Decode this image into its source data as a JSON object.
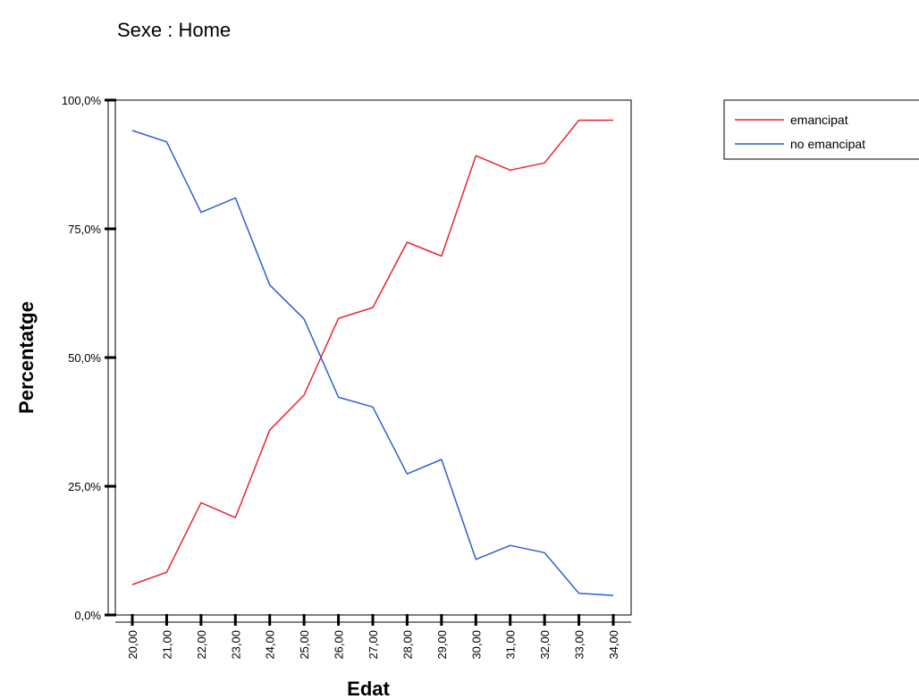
{
  "page": {
    "title": "Sexe : Home"
  },
  "chart_data": {
    "type": "line",
    "title": "Sexe : Home",
    "xlabel": "Edat",
    "ylabel": "Percentatge",
    "x": [
      "20,00",
      "21,00",
      "22,00",
      "23,00",
      "24,00",
      "25,00",
      "26,00",
      "27,00",
      "28,00",
      "29,00",
      "30,00",
      "31,00",
      "32,00",
      "33,00",
      "34,00"
    ],
    "ylim": [
      0,
      100
    ],
    "yticks": [
      0,
      25,
      50,
      75,
      100
    ],
    "ytick_labels": [
      "0,0%",
      "25,0%",
      "50,0%",
      "75,0%",
      "100,0%"
    ],
    "grid": false,
    "legend_position": "top-right",
    "series": [
      {
        "name": "emancipat",
        "color": "#e8262b",
        "values": [
          5.9,
          8.3,
          21.8,
          18.9,
          35.9,
          42.7,
          57.6,
          59.7,
          72.4,
          69.7,
          89.2,
          86.4,
          87.8,
          96.1,
          96.1
        ]
      },
      {
        "name": "no emancipat",
        "color": "#2f5fd0",
        "values": [
          94.1,
          91.9,
          78.2,
          81.0,
          64.1,
          57.5,
          42.3,
          40.4,
          27.4,
          30.2,
          10.8,
          13.5,
          12.1,
          4.2,
          3.8
        ]
      }
    ]
  }
}
